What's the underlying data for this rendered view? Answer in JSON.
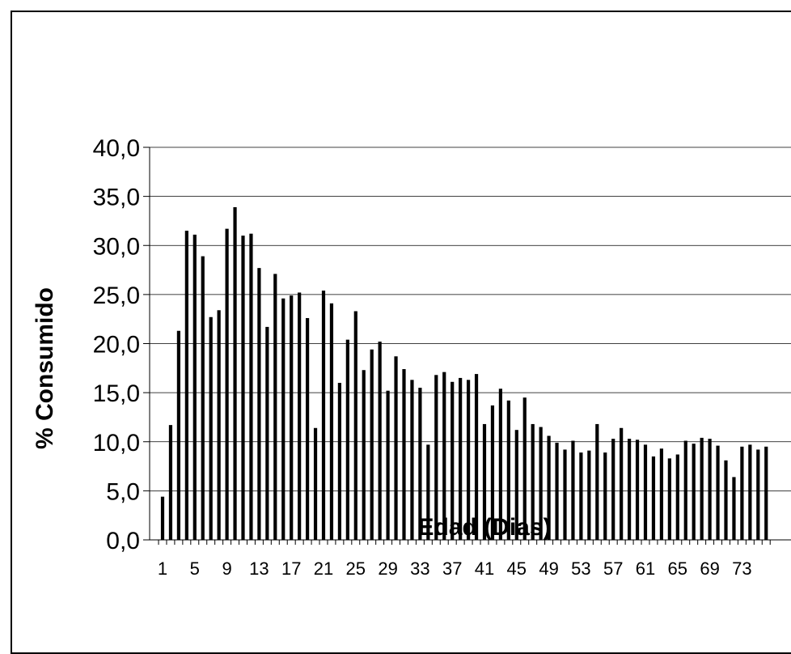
{
  "chart_data": {
    "type": "bar",
    "xlabel": "Edad (Dias)",
    "ylabel": "% Consumido",
    "ylim": [
      0,
      40
    ],
    "yticks": [
      "0,0",
      "5,0",
      "10,0",
      "15,0",
      "20,0",
      "25,0",
      "30,0",
      "35,0",
      "40,0"
    ],
    "xtick_labels": [
      "1",
      "5",
      "9",
      "13",
      "17",
      "21",
      "25",
      "29",
      "33",
      "37",
      "41",
      "45",
      "49",
      "53",
      "57",
      "61",
      "65",
      "69",
      "73"
    ],
    "grid": "horizontal",
    "bar_color": "#000000",
    "x": [
      1,
      2,
      3,
      4,
      5,
      6,
      7,
      8,
      9,
      10,
      11,
      12,
      13,
      14,
      15,
      16,
      17,
      18,
      19,
      20,
      21,
      22,
      23,
      24,
      25,
      26,
      27,
      28,
      29,
      30,
      31,
      32,
      33,
      34,
      35,
      36,
      37,
      38,
      39,
      40,
      41,
      42,
      43,
      44,
      45,
      46,
      47,
      48,
      49,
      50,
      51,
      52,
      53,
      54,
      55,
      56,
      57,
      58,
      59,
      60,
      61,
      62,
      63,
      64,
      65,
      66,
      67,
      68,
      69,
      70,
      71,
      72,
      73,
      74,
      75,
      76
    ],
    "values": [
      4.4,
      11.7,
      21.3,
      31.5,
      31.1,
      28.9,
      22.7,
      23.4,
      31.7,
      33.9,
      31.0,
      31.2,
      27.7,
      21.7,
      27.1,
      24.6,
      24.9,
      25.2,
      22.6,
      11.4,
      25.4,
      24.1,
      16.0,
      20.4,
      23.3,
      17.3,
      19.4,
      20.2,
      15.2,
      18.7,
      17.4,
      16.3,
      15.5,
      9.7,
      16.8,
      17.1,
      16.1,
      16.5,
      16.3,
      16.9,
      11.8,
      13.7,
      15.4,
      14.2,
      11.2,
      14.5,
      11.8,
      11.5,
      10.6,
      9.9,
      9.2,
      10.1,
      8.9,
      9.1,
      11.8,
      8.9,
      10.3,
      11.4,
      10.3,
      10.2,
      9.7,
      8.5,
      9.3,
      8.3,
      8.7,
      10.1,
      9.8,
      10.4,
      10.3,
      9.6,
      8.1,
      6.4,
      9.5,
      9.7,
      9.2,
      9.5
    ]
  }
}
